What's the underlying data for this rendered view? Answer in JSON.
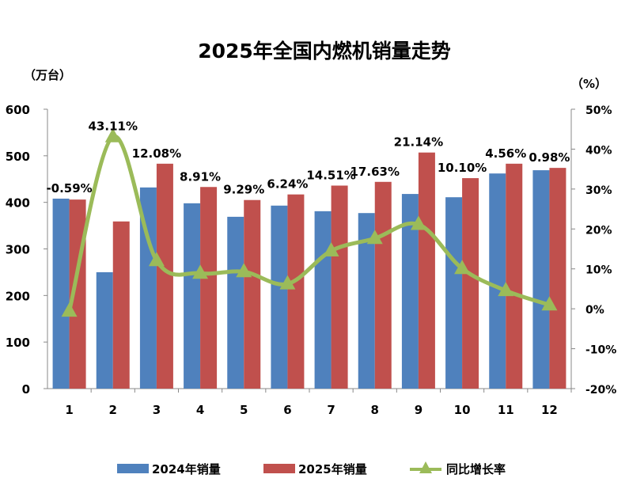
{
  "chart_data": {
    "type": "bar",
    "title": "2025年全国内燃机销量走势",
    "ylabel": "（万台）",
    "y2label": "（%）",
    "categories": [
      "1",
      "2",
      "3",
      "4",
      "5",
      "6",
      "7",
      "8",
      "9",
      "10",
      "11",
      "12"
    ],
    "ylim": [
      0,
      600
    ],
    "yticks": [
      0,
      100,
      200,
      300,
      400,
      500,
      600
    ],
    "y2lim": [
      -20,
      50
    ],
    "y2ticks": [
      "-20%",
      "-10%",
      "0%",
      "10%",
      "20%",
      "30%",
      "40%",
      "50%"
    ],
    "series": [
      {
        "name": "2024年销量",
        "type": "bar",
        "color": "#4F81BD",
        "values": [
          408,
          250,
          432,
          398,
          369,
          393,
          381,
          377,
          418,
          411,
          462,
          469
        ]
      },
      {
        "name": "2025年销量",
        "type": "bar",
        "color": "#C0504D",
        "values": [
          406,
          359,
          483,
          433,
          405,
          417,
          436,
          444,
          507,
          452,
          483,
          474
        ]
      },
      {
        "name": "同比增长率",
        "type": "line",
        "axis": "right",
        "color": "#9BBB59",
        "values": [
          -0.59,
          43.11,
          12.08,
          8.91,
          9.29,
          6.24,
          14.51,
          17.63,
          21.14,
          10.1,
          4.56,
          0.98
        ],
        "labels": [
          "-0.59%",
          "43.11%",
          "12.08%",
          "8.91%",
          "9.29%",
          "6.24%",
          "14.51%",
          "17.63%",
          "21.14%",
          "10.10%",
          "4.56%",
          "0.98%"
        ]
      }
    ],
    "legend": "bottom",
    "grid": false
  }
}
